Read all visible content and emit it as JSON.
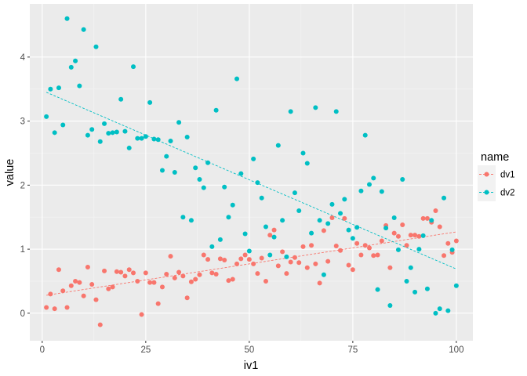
{
  "chart_data": {
    "type": "scatter",
    "title": "",
    "xlabel": "iv1",
    "ylabel": "value",
    "xlim": [
      -3,
      104
    ],
    "ylim": [
      -0.43,
      4.83
    ],
    "x_ticks": [
      0,
      25,
      50,
      75,
      100
    ],
    "x_tick_labels": [
      "0",
      "25",
      "50",
      "75",
      "100"
    ],
    "y_ticks": [
      0,
      1,
      2,
      3,
      4
    ],
    "y_tick_labels": [
      "0",
      "1",
      "2",
      "3",
      "4"
    ],
    "grid": true,
    "legend": {
      "title": "name",
      "position": "right"
    },
    "series": [
      {
        "name": "dv1",
        "color": "#F8766D",
        "points": [
          [
            1,
            0.09
          ],
          [
            2,
            0.3
          ],
          [
            3,
            0.07
          ],
          [
            4,
            0.68
          ],
          [
            5,
            0.35
          ],
          [
            6,
            0.09
          ],
          [
            7,
            0.43
          ],
          [
            8,
            0.5
          ],
          [
            9,
            0.48
          ],
          [
            10,
            0.27
          ],
          [
            11,
            0.72
          ],
          [
            12,
            0.45
          ],
          [
            13,
            0.21
          ],
          [
            14,
            -0.18
          ],
          [
            15,
            0.66
          ],
          [
            16,
            0.38
          ],
          [
            17,
            0.41
          ],
          [
            18,
            0.65
          ],
          [
            19,
            0.64
          ],
          [
            20,
            0.58
          ],
          [
            21,
            0.68
          ],
          [
            22,
            0.63
          ],
          [
            23,
            0.5
          ],
          [
            24,
            -0.02
          ],
          [
            25,
            0.63
          ],
          [
            26,
            0.48
          ],
          [
            27,
            0.48
          ],
          [
            28,
            0.15
          ],
          [
            29,
            0.41
          ],
          [
            30,
            0.61
          ],
          [
            31,
            0.89
          ],
          [
            32,
            0.55
          ],
          [
            33,
            0.64
          ],
          [
            34,
            0.58
          ],
          [
            35,
            0.24
          ],
          [
            36,
            0.49
          ],
          [
            37,
            0.53
          ],
          [
            38,
            0.6
          ],
          [
            39,
            0.91
          ],
          [
            40,
            0.84
          ],
          [
            41,
            0.63
          ],
          [
            42,
            0.61
          ],
          [
            43,
            0.85
          ],
          [
            44,
            0.83
          ],
          [
            45,
            0.51
          ],
          [
            46,
            0.53
          ],
          [
            47,
            0.77
          ],
          [
            48,
            0.85
          ],
          [
            49,
            0.91
          ],
          [
            50,
            0.84
          ],
          [
            51,
            0.77
          ],
          [
            52,
            0.62
          ],
          [
            53,
            0.86
          ],
          [
            54,
            0.5
          ],
          [
            55,
            1.22
          ],
          [
            56,
            1.3
          ],
          [
            57,
            0.74
          ],
          [
            58,
            0.96
          ],
          [
            59,
            0.62
          ],
          [
            60,
            0.8
          ],
          [
            61,
            0.87
          ],
          [
            62,
            0.79
          ],
          [
            63,
            1.04
          ],
          [
            64,
            0.71
          ],
          [
            65,
            1.06
          ],
          [
            66,
            0.77
          ],
          [
            67,
            0.47
          ],
          [
            68,
            1.29
          ],
          [
            69,
            0.81
          ],
          [
            70,
            1.49
          ],
          [
            71,
            1.05
          ],
          [
            72,
            0.98
          ],
          [
            73,
            1.48
          ],
          [
            74,
            0.75
          ],
          [
            75,
            0.68
          ],
          [
            76,
            1.09
          ],
          [
            77,
            0.91
          ],
          [
            78,
            1.06
          ],
          [
            79,
            1.02
          ],
          [
            80,
            0.9
          ],
          [
            81,
            0.91
          ],
          [
            82,
            1.13
          ],
          [
            83,
            1.37
          ],
          [
            84,
            0.71
          ],
          [
            85,
            1.25
          ],
          [
            86,
            1.2
          ],
          [
            87,
            1.38
          ],
          [
            88,
            1.06
          ],
          [
            89,
            1.22
          ],
          [
            90,
            1.22
          ],
          [
            91,
            1.2
          ],
          [
            92,
            1.48
          ],
          [
            93,
            1.48
          ],
          [
            94,
            1.42
          ],
          [
            95,
            1.6
          ],
          [
            96,
            1.35
          ],
          [
            97,
            0.9
          ],
          [
            98,
            1.09
          ],
          [
            99,
            0.95
          ],
          [
            100,
            1.13
          ]
        ],
        "trend": [
          [
            1,
            0.28
          ],
          [
            100,
            1.27
          ]
        ]
      },
      {
        "name": "dv2",
        "color": "#00BFC4",
        "points": [
          [
            1,
            3.07
          ],
          [
            2,
            3.5
          ],
          [
            3,
            2.82
          ],
          [
            4,
            3.52
          ],
          [
            5,
            2.94
          ],
          [
            6,
            4.6
          ],
          [
            7,
            3.84
          ],
          [
            8,
            3.94
          ],
          [
            9,
            3.55
          ],
          [
            10,
            4.43
          ],
          [
            11,
            2.78
          ],
          [
            12,
            2.87
          ],
          [
            13,
            4.16
          ],
          [
            14,
            2.68
          ],
          [
            15,
            2.96
          ],
          [
            16,
            2.81
          ],
          [
            17,
            2.82
          ],
          [
            18,
            2.83
          ],
          [
            19,
            3.34
          ],
          [
            20,
            2.84
          ],
          [
            21,
            2.58
          ],
          [
            22,
            3.85
          ],
          [
            23,
            2.73
          ],
          [
            24,
            2.73
          ],
          [
            25,
            2.76
          ],
          [
            26,
            3.29
          ],
          [
            27,
            2.72
          ],
          [
            28,
            2.71
          ],
          [
            29,
            2.23
          ],
          [
            30,
            2.45
          ],
          [
            31,
            2.69
          ],
          [
            32,
            2.2
          ],
          [
            33,
            2.98
          ],
          [
            34,
            1.5
          ],
          [
            35,
            2.75
          ],
          [
            36,
            1.45
          ],
          [
            37,
            2.27
          ],
          [
            38,
            2.09
          ],
          [
            39,
            1.96
          ],
          [
            40,
            2.35
          ],
          [
            41,
            1.04
          ],
          [
            42,
            3.17
          ],
          [
            43,
            1.15
          ],
          [
            44,
            1.97
          ],
          [
            45,
            1.5
          ],
          [
            46,
            1.69
          ],
          [
            47,
            3.66
          ],
          [
            48,
            2.18
          ],
          [
            49,
            1.24
          ],
          [
            50,
            0.97
          ],
          [
            51,
            2.41
          ],
          [
            52,
            2.04
          ],
          [
            53,
            1.8
          ],
          [
            54,
            1.35
          ],
          [
            55,
            0.91
          ],
          [
            56,
            1.19
          ],
          [
            57,
            2.62
          ],
          [
            58,
            1.45
          ],
          [
            59,
            0.88
          ],
          [
            60,
            3.15
          ],
          [
            61,
            1.88
          ],
          [
            62,
            1.6
          ],
          [
            63,
            2.5
          ],
          [
            64,
            2.34
          ],
          [
            65,
            1.25
          ],
          [
            66,
            3.21
          ],
          [
            67,
            1.45
          ],
          [
            68,
            0.6
          ],
          [
            69,
            1.4
          ],
          [
            70,
            1.7
          ],
          [
            71,
            3.15
          ],
          [
            72,
            1.56
          ],
          [
            73,
            1.78
          ],
          [
            74,
            1.3
          ],
          [
            75,
            1.17
          ],
          [
            76,
            1.34
          ],
          [
            77,
            1.91
          ],
          [
            78,
            2.78
          ],
          [
            79,
            2.01
          ],
          [
            80,
            2.11
          ],
          [
            81,
            0.37
          ],
          [
            82,
            1.9
          ],
          [
            83,
            1.33
          ],
          [
            84,
            0.12
          ],
          [
            85,
            1.49
          ],
          [
            86,
            0.99
          ],
          [
            87,
            2.09
          ],
          [
            88,
            0.5
          ],
          [
            89,
            0.71
          ],
          [
            90,
            0.33
          ],
          [
            91,
            1.0
          ],
          [
            92,
            1.21
          ],
          [
            93,
            0.38
          ],
          [
            94,
            1.45
          ],
          [
            95,
            0.0
          ],
          [
            96,
            0.07
          ],
          [
            97,
            1.8
          ],
          [
            98,
            0.04
          ],
          [
            99,
            0.99
          ],
          [
            100,
            0.43
          ]
        ],
        "trend": [
          [
            1,
            3.45
          ],
          [
            100,
            0.69
          ]
        ]
      }
    ]
  }
}
